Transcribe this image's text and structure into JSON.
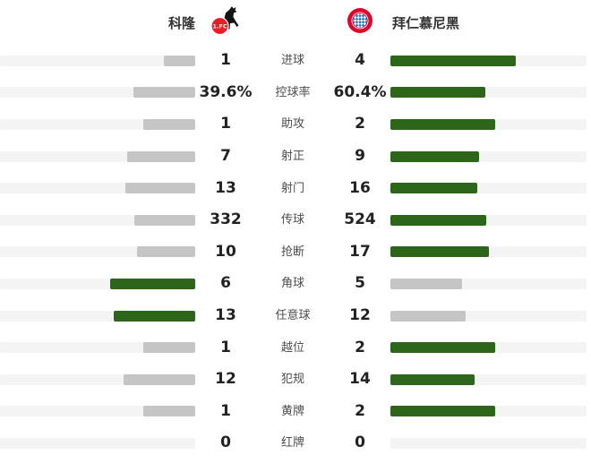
{
  "header": {
    "home": {
      "name": "科隆"
    },
    "away": {
      "name": "拜仁慕尼黑"
    }
  },
  "colors": {
    "lead_bar": "#2d661b",
    "trail_bar": "#c5c5c5",
    "bar_track": "#f4f4f4",
    "home_badge_red": "#ed1c24",
    "away_badge_red": "#dc052d",
    "away_badge_blue": "#2b6fb5",
    "value_text": "#222222",
    "label_text": "#4d4d4d"
  },
  "stats": [
    {
      "label": "进球",
      "home": "1",
      "away": "4",
      "home_val": 1,
      "away_val": 4
    },
    {
      "label": "控球率",
      "home": "39.6%",
      "away": "60.4%",
      "home_val": 39.6,
      "away_val": 60.4
    },
    {
      "label": "助攻",
      "home": "1",
      "away": "2",
      "home_val": 1,
      "away_val": 2
    },
    {
      "label": "射正",
      "home": "7",
      "away": "9",
      "home_val": 7,
      "away_val": 9
    },
    {
      "label": "射门",
      "home": "13",
      "away": "16",
      "home_val": 13,
      "away_val": 16
    },
    {
      "label": "传球",
      "home": "332",
      "away": "524",
      "home_val": 332,
      "away_val": 524
    },
    {
      "label": "抢断",
      "home": "10",
      "away": "17",
      "home_val": 10,
      "away_val": 17
    },
    {
      "label": "角球",
      "home": "6",
      "away": "5",
      "home_val": 6,
      "away_val": 5
    },
    {
      "label": "任意球",
      "home": "13",
      "away": "12",
      "home_val": 13,
      "away_val": 12
    },
    {
      "label": "越位",
      "home": "1",
      "away": "2",
      "home_val": 1,
      "away_val": 2
    },
    {
      "label": "犯规",
      "home": "12",
      "away": "14",
      "home_val": 12,
      "away_val": 14
    },
    {
      "label": "黄牌",
      "home": "1",
      "away": "2",
      "home_val": 1,
      "away_val": 2
    },
    {
      "label": "红牌",
      "home": "0",
      "away": "0",
      "home_val": 0,
      "away_val": 0
    }
  ],
  "chart_data": {
    "type": "bar",
    "orientation": "horizontal-diverging",
    "title": "科隆 vs 拜仁慕尼黑",
    "categories": [
      "进球",
      "控球率",
      "助攻",
      "射正",
      "射门",
      "传球",
      "抢断",
      "角球",
      "任意球",
      "越位",
      "犯规",
      "黄牌",
      "红牌"
    ],
    "series": [
      {
        "name": "科隆",
        "values": [
          1,
          39.6,
          1,
          7,
          13,
          332,
          10,
          6,
          13,
          1,
          12,
          1,
          0
        ]
      },
      {
        "name": "拜仁慕尼黑",
        "values": [
          4,
          60.4,
          2,
          9,
          16,
          524,
          17,
          5,
          12,
          2,
          14,
          2,
          0
        ]
      }
    ],
    "legend_position": "top",
    "grid": false,
    "bar_color_rule": "higher value = green, lower value = gray",
    "bar_width_rule": "value / (home+away) of pair, scaled to 80% of track"
  }
}
